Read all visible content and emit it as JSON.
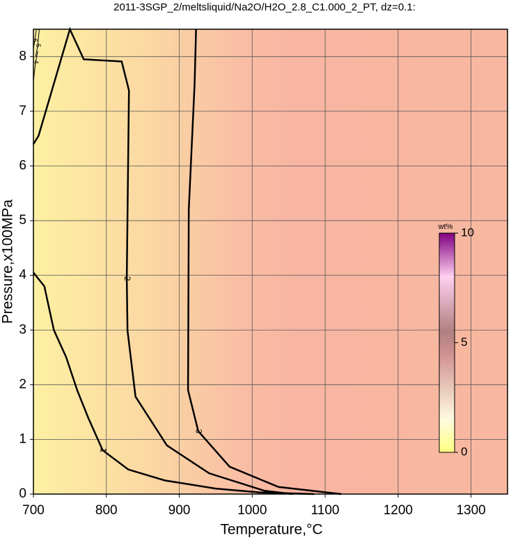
{
  "chart_data": {
    "type": "contour",
    "title": "2011-3SGP_2/meltsliquid/Na2O/H2O_2.8_C1.000_2_PT, dz=0.1:",
    "x_label": "Temperature,°C",
    "y_label": "Pressure,x100MPa",
    "xlim": [
      700,
      1350
    ],
    "ylim": [
      0,
      8.5
    ],
    "xticks": [
      700,
      800,
      900,
      1000,
      1100,
      1200,
      1300
    ],
    "yticks": [
      0,
      1,
      2,
      3,
      4,
      5,
      6,
      7,
      8
    ],
    "grid": true,
    "series": [
      {
        "label": "1",
        "x": [
          700,
          715,
          728,
          745,
          760,
          775,
          795,
          830,
          880,
          950,
          1010,
          1085
        ],
        "y": [
          4.05,
          3.8,
          3.0,
          2.5,
          1.9,
          1.4,
          0.8,
          0.45,
          0.25,
          0.1,
          0.03,
          0
        ]
      },
      {
        "label": "2",
        "x": [
          700,
          707,
          750,
          769,
          821,
          831,
          828,
          829,
          840,
          883,
          941,
          1017,
          1055
        ],
        "y": [
          6.4,
          6.55,
          8.5,
          7.95,
          7.91,
          7.38,
          3.94,
          2.99,
          1.78,
          0.89,
          0.38,
          0.06,
          0
        ]
      },
      {
        "label": "3",
        "x": [
          923,
          921,
          913,
          912,
          926,
          969,
          1036,
          1122
        ],
        "y": [
          8.5,
          7.5,
          5.2,
          1.9,
          1.15,
          0.5,
          0.13,
          0
        ]
      },
      {
        "label": "4",
        "x": [
          700,
          703,
          706
        ],
        "y": [
          7.55,
          7.9,
          8.1
        ]
      },
      {
        "label": "5",
        "x": [
          703,
          706,
          708
        ],
        "y": [
          8.0,
          8.2,
          8.5
        ]
      },
      {
        "label": "6",
        "x": [
          700,
          702,
          704
        ],
        "y": [
          8.15,
          8.3,
          8.5
        ]
      }
    ],
    "colorbar": {
      "label": "wt%",
      "lim": [
        0,
        10
      ],
      "ticks": [
        0,
        5,
        10
      ]
    }
  }
}
